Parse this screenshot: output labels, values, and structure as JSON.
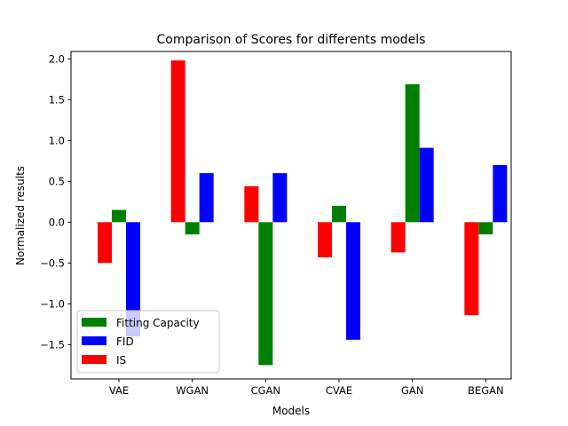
{
  "chart_data": {
    "type": "bar",
    "title": "Comparison of Scores for differents models",
    "xlabel": "Models",
    "ylabel": "Normalized results",
    "categories": [
      "VAE",
      "WGAN",
      "CGAN",
      "CVAE",
      "GAN",
      "BEGAN"
    ],
    "series": [
      {
        "name": "IS",
        "color": "#ff0000",
        "values": [
          -0.5,
          1.98,
          0.44,
          -0.43,
          -0.37,
          -1.14
        ]
      },
      {
        "name": "Fitting Capacity",
        "color": "#008000",
        "values": [
          0.15,
          -0.15,
          -1.75,
          0.2,
          1.69,
          -0.15
        ]
      },
      {
        "name": "FID",
        "color": "#0000ff",
        "values": [
          -1.4,
          0.6,
          0.6,
          -1.44,
          0.91,
          0.7
        ]
      }
    ],
    "legend_order": [
      "Fitting Capacity",
      "FID",
      "IS"
    ],
    "legend_position": "lower-left",
    "ylim": [
      -1.92,
      2.09
    ],
    "yticks": [
      -1.5,
      -1.0,
      -0.5,
      0.0,
      0.5,
      1.0,
      1.5,
      2.0
    ],
    "ytick_labels": [
      "−1.5",
      "−1.0",
      "−0.5",
      "0.0",
      "0.5",
      "1.0",
      "1.5",
      "2.0"
    ],
    "grid": false
  }
}
